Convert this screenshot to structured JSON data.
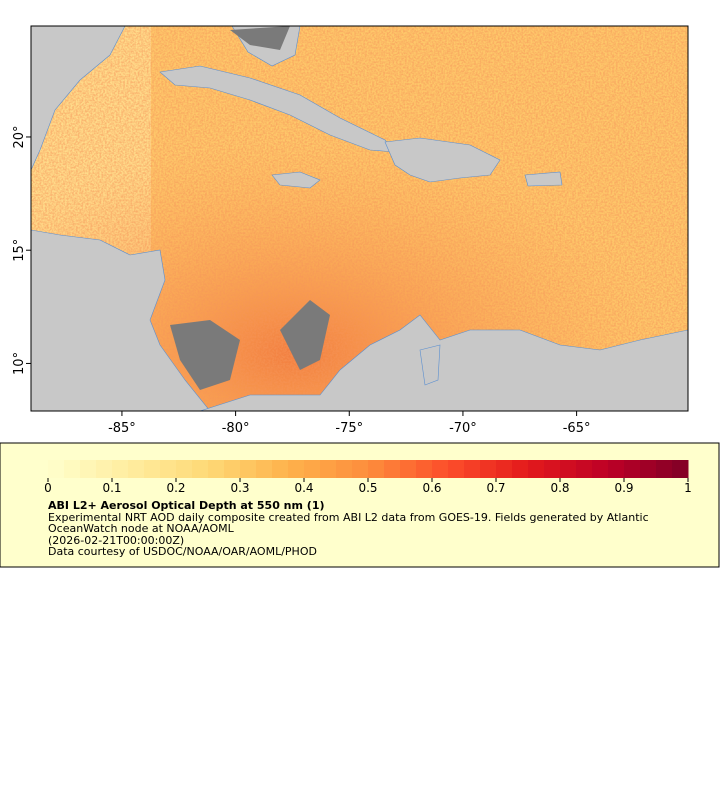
{
  "map": {
    "xlim": [
      -89,
      -60.1
    ],
    "ylim": [
      7.9,
      24.9
    ],
    "xticks": [
      {
        "value": -85,
        "label": "-85°"
      },
      {
        "value": -80,
        "label": "-80°"
      },
      {
        "value": -75,
        "label": "-75°"
      },
      {
        "value": -70,
        "label": "-70°"
      },
      {
        "value": -65,
        "label": "-65°"
      }
    ],
    "yticks": [
      {
        "value": 10,
        "label": "10°"
      },
      {
        "value": 15,
        "label": "15°"
      },
      {
        "value": 20,
        "label": "20°"
      }
    ],
    "land_color": "#c8c8c8",
    "missing_color": "#7a7a7a"
  },
  "colorbar": {
    "lim": [
      0,
      1
    ],
    "ticks": [
      0,
      0.1,
      0.2,
      0.3,
      0.4,
      0.5,
      0.6,
      0.7,
      0.8,
      0.9,
      1
    ],
    "colors": [
      "#ffffcc",
      "#ffeda0",
      "#fed976",
      "#feb24c",
      "#fd8d3c",
      "#fc4e2a",
      "#e31a1c",
      "#bd0026",
      "#800026"
    ]
  },
  "legend": {
    "title": "ABI L2+ Aerosol Optical Depth at 550 nm (1)",
    "lines": [
      "Experimental NRT AOD daily composite created from ABI L2 data from GOES-19. Fields generated by Atlantic",
      "OceanWatch node at NOAA/AOML",
      "(2026-02-21T00:00:00Z)",
      "Data courtesy of USDOC/NOAA/OAR/AOML/PHOD"
    ]
  }
}
